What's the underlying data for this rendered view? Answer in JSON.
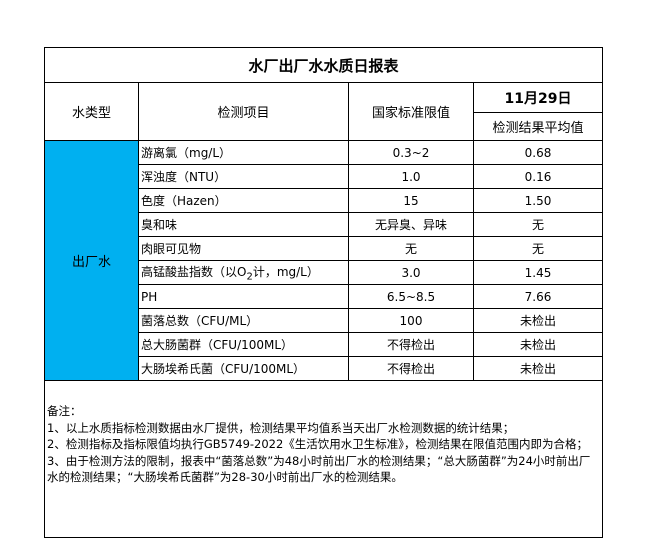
{
  "title": "水厂出厂水水质日报表",
  "headers": {
    "water_type": "水类型",
    "item": "检测项目",
    "standard": "国家标准限值",
    "date": "11月29日",
    "result": "检测结果平均值"
  },
  "water_type_value": "出厂水",
  "colors": {
    "water_type_bg": "#00b0f0"
  },
  "rows": [
    {
      "item": "游离氯（mg/L）",
      "standard": "0.3~2",
      "result": "0.68"
    },
    {
      "item": "浑浊度（NTU）",
      "standard": "1.0",
      "result": "0.16"
    },
    {
      "item": "色度（Hazen）",
      "standard": "15",
      "result": "1.50"
    },
    {
      "item": "臭和味",
      "standard": "无异臭、异味",
      "result": "无"
    },
    {
      "item": "肉眼可见物",
      "standard": "无",
      "result": "无"
    },
    {
      "item": "高锰酸盐指数（以O",
      "item_sub": "2",
      "item_post": "计，mg/L）",
      "standard": "3.0",
      "result": "1.45"
    },
    {
      "item": "PH",
      "standard": "6.5~8.5",
      "result": "7.66"
    },
    {
      "item": "菌落总数（CFU/ML）",
      "standard": "100",
      "result": "未检出"
    },
    {
      "item": "总大肠菌群（CFU/100ML）",
      "standard": "不得检出",
      "result": "未检出"
    },
    {
      "item": "大肠埃希氏菌（CFU/100ML）",
      "standard": "不得检出",
      "result": "未检出"
    }
  ],
  "notes": "备注：\n1、以上水质指标检测数据由水厂提供，检测结果平均值系当天出厂水检测数据的统计结果；\n2、检测指标及指标限值均执行GB5749-2022《生活饮用水卫生标准》，检测结果在限值范围内即为合格；\n3、由于检测方法的限制，报表中“菌落总数”为48小时前出厂水的检测结果；“总大肠菌群”为24小时前出厂水的检测结果；“大肠埃希氏菌群”为28-30小时前出厂水的检测结果。"
}
